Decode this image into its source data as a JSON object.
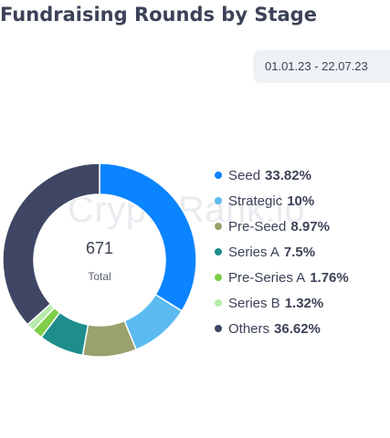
{
  "header": {
    "title": "Fundraising Rounds by Stage"
  },
  "filter": {
    "date_range": "01.01.23 - 22.07.23"
  },
  "watermark": "CryptoRank.io",
  "center": {
    "value": "671",
    "label": "Total"
  },
  "chart_data": {
    "type": "pie",
    "donut": true,
    "title": "Fundraising Rounds by Stage",
    "total": 671,
    "slices": [
      {
        "label": "Seed",
        "value_label": "33.82%",
        "value": 33.82,
        "color": "#0a84ff"
      },
      {
        "label": "Strategic",
        "value_label": "10%",
        "value": 10,
        "color": "#5bbaf0"
      },
      {
        "label": "Pre-Seed",
        "value_label": "8.97%",
        "value": 8.97,
        "color": "#9aa16d"
      },
      {
        "label": "Series A",
        "value_label": "7.5%",
        "value": 7.5,
        "color": "#1e8d8c"
      },
      {
        "label": "Pre-Series A",
        "value_label": "1.76%",
        "value": 1.76,
        "color": "#7fce48"
      },
      {
        "label": "Series B",
        "value_label": "1.32%",
        "value": 1.32,
        "color": "#b7ebab"
      },
      {
        "label": "Others",
        "value_label": "36.62%",
        "value": 36.62,
        "color": "#3f4664"
      }
    ]
  }
}
